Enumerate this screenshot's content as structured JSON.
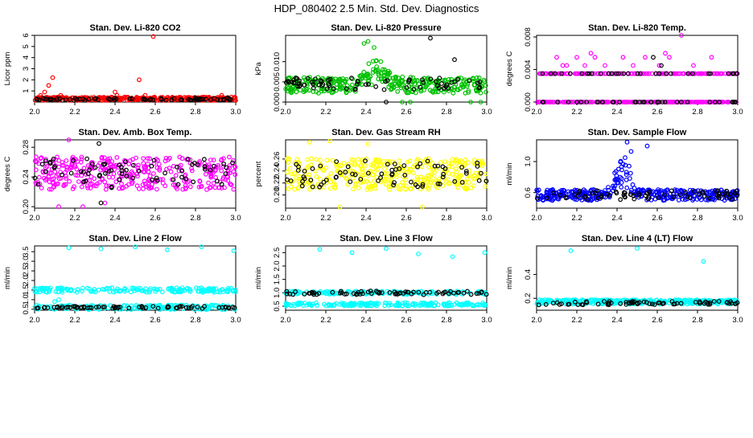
{
  "figure": {
    "title": "HDP_080402  2.5 Min. Std. Dev. Diagnostics"
  },
  "colors": {
    "black": "#000000",
    "red": "#ff0000",
    "green": "#00c000",
    "magenta": "#ff00ff",
    "yellow": "#ffff00",
    "blue": "#0000ff",
    "cyan": "#00ffff"
  },
  "chart_data": [
    {
      "id": "co2",
      "type": "scatter",
      "title": "Stan. Dev. Li-820 CO2",
      "xlabel": "",
      "ylabel": "Licor ppm",
      "xlim": [
        2.0,
        3.0
      ],
      "ylim": [
        0.0,
        6.0
      ],
      "xticks": [
        "2.0",
        "2.2",
        "2.4",
        "2.6",
        "2.8",
        "3.0"
      ],
      "yticks": [
        "1",
        "2",
        "3",
        "4",
        "5",
        "6"
      ],
      "series": [
        {
          "name": "primary",
          "color": "red",
          "base": 0.3,
          "spread": 0.15,
          "outliers": [
            [
              2.03,
              0.6
            ],
            [
              2.05,
              0.9
            ],
            [
              2.07,
              1.5
            ],
            [
              2.09,
              2.2
            ],
            [
              2.13,
              0.6
            ],
            [
              2.4,
              0.9
            ],
            [
              2.41,
              0.6
            ],
            [
              2.52,
              2.0
            ],
            [
              2.55,
              0.6
            ],
            [
              2.59,
              5.9
            ],
            [
              2.93,
              0.6
            ]
          ]
        },
        {
          "name": "secondary",
          "color": "black",
          "base": 0.25,
          "spread": 0.1,
          "outliers": [
            [
              2.8,
              0.4
            ],
            [
              2.96,
              0.4
            ]
          ]
        }
      ]
    },
    {
      "id": "pressure",
      "type": "scatter",
      "title": "Stan. Dev. Li-820 Pressure",
      "xlabel": "",
      "ylabel": "kPa",
      "xlim": [
        2.0,
        3.0
      ],
      "ylim": [
        0.0,
        0.0165
      ],
      "xticks": [
        "2.0",
        "2.2",
        "2.4",
        "2.6",
        "2.8",
        "3.0"
      ],
      "yticks": [
        "0.000",
        "0.005",
        "0.010"
      ],
      "series": [
        {
          "name": "primary",
          "color": "green",
          "base": 0.0042,
          "spread": 0.002,
          "hump": {
            "center": 2.45,
            "width": 0.07,
            "height": 0.004
          },
          "outliers": [
            [
              2.39,
              0.0145
            ],
            [
              2.41,
              0.015
            ],
            [
              2.44,
              0.0135
            ],
            [
              2.58,
              0.0
            ],
            [
              2.62,
              0.0
            ],
            [
              2.92,
              0.0
            ],
            [
              2.97,
              0.0
            ]
          ]
        },
        {
          "name": "secondary",
          "color": "black",
          "base": 0.0045,
          "spread": 0.0015,
          "outliers": [
            [
              2.72,
              0.0158
            ],
            [
              2.84,
              0.0105
            ],
            [
              2.5,
              0.0
            ]
          ]
        }
      ]
    },
    {
      "id": "temp",
      "type": "scatter",
      "title": "Stan. Dev. Li-820 Temp.",
      "xlabel": "",
      "ylabel": "degrees C",
      "xlim": [
        2.0,
        3.0
      ],
      "ylim": [
        0.0,
        0.0082
      ],
      "xticks": [
        "2.0",
        "2.2",
        "2.4",
        "2.6",
        "2.8",
        "3.0"
      ],
      "yticks": [
        "0.000",
        "0.004",
        "0.008"
      ],
      "series": [
        {
          "name": "primary",
          "color": "magenta",
          "levels": [
            0.0,
            0.0035
          ],
          "outliers": [
            [
              2.1,
              0.0055
            ],
            [
              2.13,
              0.0045
            ],
            [
              2.15,
              0.0045
            ],
            [
              2.2,
              0.0055
            ],
            [
              2.24,
              0.0045
            ],
            [
              2.27,
              0.006
            ],
            [
              2.29,
              0.0055
            ],
            [
              2.34,
              0.0045
            ],
            [
              2.43,
              0.0055
            ],
            [
              2.48,
              0.0045
            ],
            [
              2.54,
              0.0055
            ],
            [
              2.61,
              0.0045
            ],
            [
              2.64,
              0.006
            ],
            [
              2.66,
              0.0055
            ],
            [
              2.72,
              0.0082
            ],
            [
              2.78,
              0.0045
            ],
            [
              2.87,
              0.0055
            ],
            [
              2.94,
              0.0035
            ]
          ]
        },
        {
          "name": "secondary",
          "color": "black",
          "levels": [
            0.0,
            0.0035
          ],
          "outliers": [
            [
              2.58,
              0.0055
            ],
            [
              2.62,
              0.0045
            ],
            [
              2.98,
              0.0035
            ]
          ]
        }
      ]
    },
    {
      "id": "boxtemp",
      "type": "scatter",
      "title": "Stan. Dev. Amb. Box Temp.",
      "xlabel": "",
      "ylabel": "degrees C",
      "xlim": [
        2.0,
        3.0
      ],
      "ylim": [
        0.198,
        0.29
      ],
      "xticks": [
        "2.0",
        "2.2",
        "2.4",
        "2.6",
        "2.8",
        "3.0"
      ],
      "yticks": [
        "0.20",
        "0.24",
        "0.28"
      ],
      "series": [
        {
          "name": "primary",
          "color": "magenta",
          "base": 0.245,
          "spread": 0.022,
          "outliers": [
            [
              2.12,
              0.2
            ],
            [
              2.24,
              0.2
            ],
            [
              2.35,
              0.205
            ],
            [
              2.17,
              0.29
            ]
          ]
        },
        {
          "name": "secondary",
          "color": "black",
          "base": 0.245,
          "spread": 0.02,
          "outliers": [
            [
              2.33,
              0.205
            ],
            [
              2.32,
              0.285
            ]
          ]
        }
      ]
    },
    {
      "id": "rh",
      "type": "scatter",
      "title": "Stan. Dev. Gas Stream RH",
      "xlabel": "",
      "ylabel": "percent",
      "xlim": [
        2.0,
        3.0
      ],
      "ylim": [
        0.178,
        0.292
      ],
      "xticks": [
        "2.0",
        "2.2",
        "2.4",
        "2.6",
        "2.8",
        "3.0"
      ],
      "yticks": [
        "0.20",
        "0.22",
        "0.24",
        "0.26"
      ],
      "series": [
        {
          "name": "primary",
          "color": "yellow",
          "base": 0.235,
          "spread": 0.026,
          "outliers": [
            [
              2.12,
              0.288
            ],
            [
              2.22,
              0.29
            ],
            [
              2.27,
              0.18
            ],
            [
              2.41,
              0.285
            ],
            [
              2.68,
              0.18
            ]
          ]
        },
        {
          "name": "secondary",
          "color": "black",
          "base": 0.235,
          "spread": 0.022,
          "outliers": []
        }
      ]
    },
    {
      "id": "sampleflow",
      "type": "scatter",
      "title": "Stan. Dev. Sample Flow",
      "xlabel": "",
      "ylabel": "ml/min",
      "xlim": [
        2.0,
        3.0
      ],
      "ylim": [
        0.4,
        1.28
      ],
      "xticks": [
        "2.0",
        "2.2",
        "2.4",
        "2.6",
        "2.8",
        "3.0"
      ],
      "yticks": [
        "0.6",
        "1.0"
      ],
      "series": [
        {
          "name": "primary",
          "color": "blue",
          "base": 0.57,
          "spread": 0.07,
          "hump": {
            "center": 2.43,
            "width": 0.05,
            "height": 0.35
          },
          "outliers": [
            [
              2.45,
              1.25
            ],
            [
              2.55,
              1.2
            ],
            [
              2.47,
              1.13
            ],
            [
              2.44,
              1.05
            ]
          ]
        },
        {
          "name": "secondary",
          "color": "black",
          "base": 0.57,
          "spread": 0.06,
          "outliers": []
        }
      ]
    },
    {
      "id": "line2",
      "type": "scatter",
      "title": "Stan. Dev. Line 2 Flow",
      "xlabel": "",
      "ylabel": "ml/min",
      "xlim": [
        2.0,
        3.0
      ],
      "ylim": [
        0.45,
        3.8
      ],
      "xticks": [
        "2.0",
        "2.2",
        "2.4",
        "2.6",
        "2.8",
        "3.0"
      ],
      "yticks": [
        "0.5",
        "1.0",
        "1.5",
        "2.0",
        "2.5",
        "3.0",
        "3.5"
      ],
      "series": [
        {
          "name": "primary",
          "color": "cyan",
          "levels": [
            1.5,
            0.6
          ],
          "levelSpread": 0.12,
          "outliers": [
            [
              2.17,
              3.7
            ],
            [
              2.33,
              3.65
            ],
            [
              2.5,
              3.75
            ],
            [
              2.66,
              3.6
            ],
            [
              2.83,
              3.75
            ],
            [
              2.99,
              3.55
            ],
            [
              2.1,
              0.9
            ],
            [
              2.12,
              1.0
            ]
          ]
        },
        {
          "name": "secondary",
          "color": "black",
          "base": 0.6,
          "spread": 0.06,
          "outliers": []
        }
      ]
    },
    {
      "id": "line3",
      "type": "scatter",
      "title": "Stan. Dev. Line 3 Flow",
      "xlabel": "",
      "ylabel": "ml/min",
      "xlim": [
        2.0,
        3.0
      ],
      "ylim": [
        0.35,
        2.75
      ],
      "xticks": [
        "2.0",
        "2.2",
        "2.4",
        "2.6",
        "2.8",
        "3.0"
      ],
      "yticks": [
        "0.5",
        "1.0",
        "1.5",
        "2.0",
        "2.5"
      ],
      "series": [
        {
          "name": "primary",
          "color": "cyan",
          "levels": [
            1.0,
            0.57
          ],
          "levelSpread": 0.06,
          "outliers": [
            [
              2.17,
              2.62
            ],
            [
              2.33,
              2.5
            ],
            [
              2.5,
              2.65
            ],
            [
              2.66,
              2.45
            ],
            [
              2.83,
              2.35
            ],
            [
              2.99,
              2.5
            ]
          ]
        },
        {
          "name": "secondary",
          "color": "black",
          "base": 1.0,
          "spread": 0.07,
          "outliers": []
        }
      ]
    },
    {
      "id": "line4",
      "type": "scatter",
      "title": "Stan. Dev. Line 4 (LT) Flow",
      "xlabel": "",
      "ylabel": "ml/min",
      "xlim": [
        2.0,
        3.0
      ],
      "ylim": [
        0.1,
        0.64
      ],
      "xticks": [
        "2.0",
        "2.2",
        "2.4",
        "2.6",
        "2.8",
        "3.0"
      ],
      "yticks": [
        "0.2",
        "0.4"
      ],
      "series": [
        {
          "name": "primary",
          "color": "cyan",
          "base": 0.17,
          "spread": 0.018,
          "outliers": [
            [
              2.17,
              0.6
            ],
            [
              2.5,
              0.62
            ],
            [
              2.83,
              0.51
            ]
          ]
        },
        {
          "name": "secondary",
          "color": "black",
          "base": 0.16,
          "spread": 0.015,
          "outliers": []
        }
      ]
    }
  ]
}
